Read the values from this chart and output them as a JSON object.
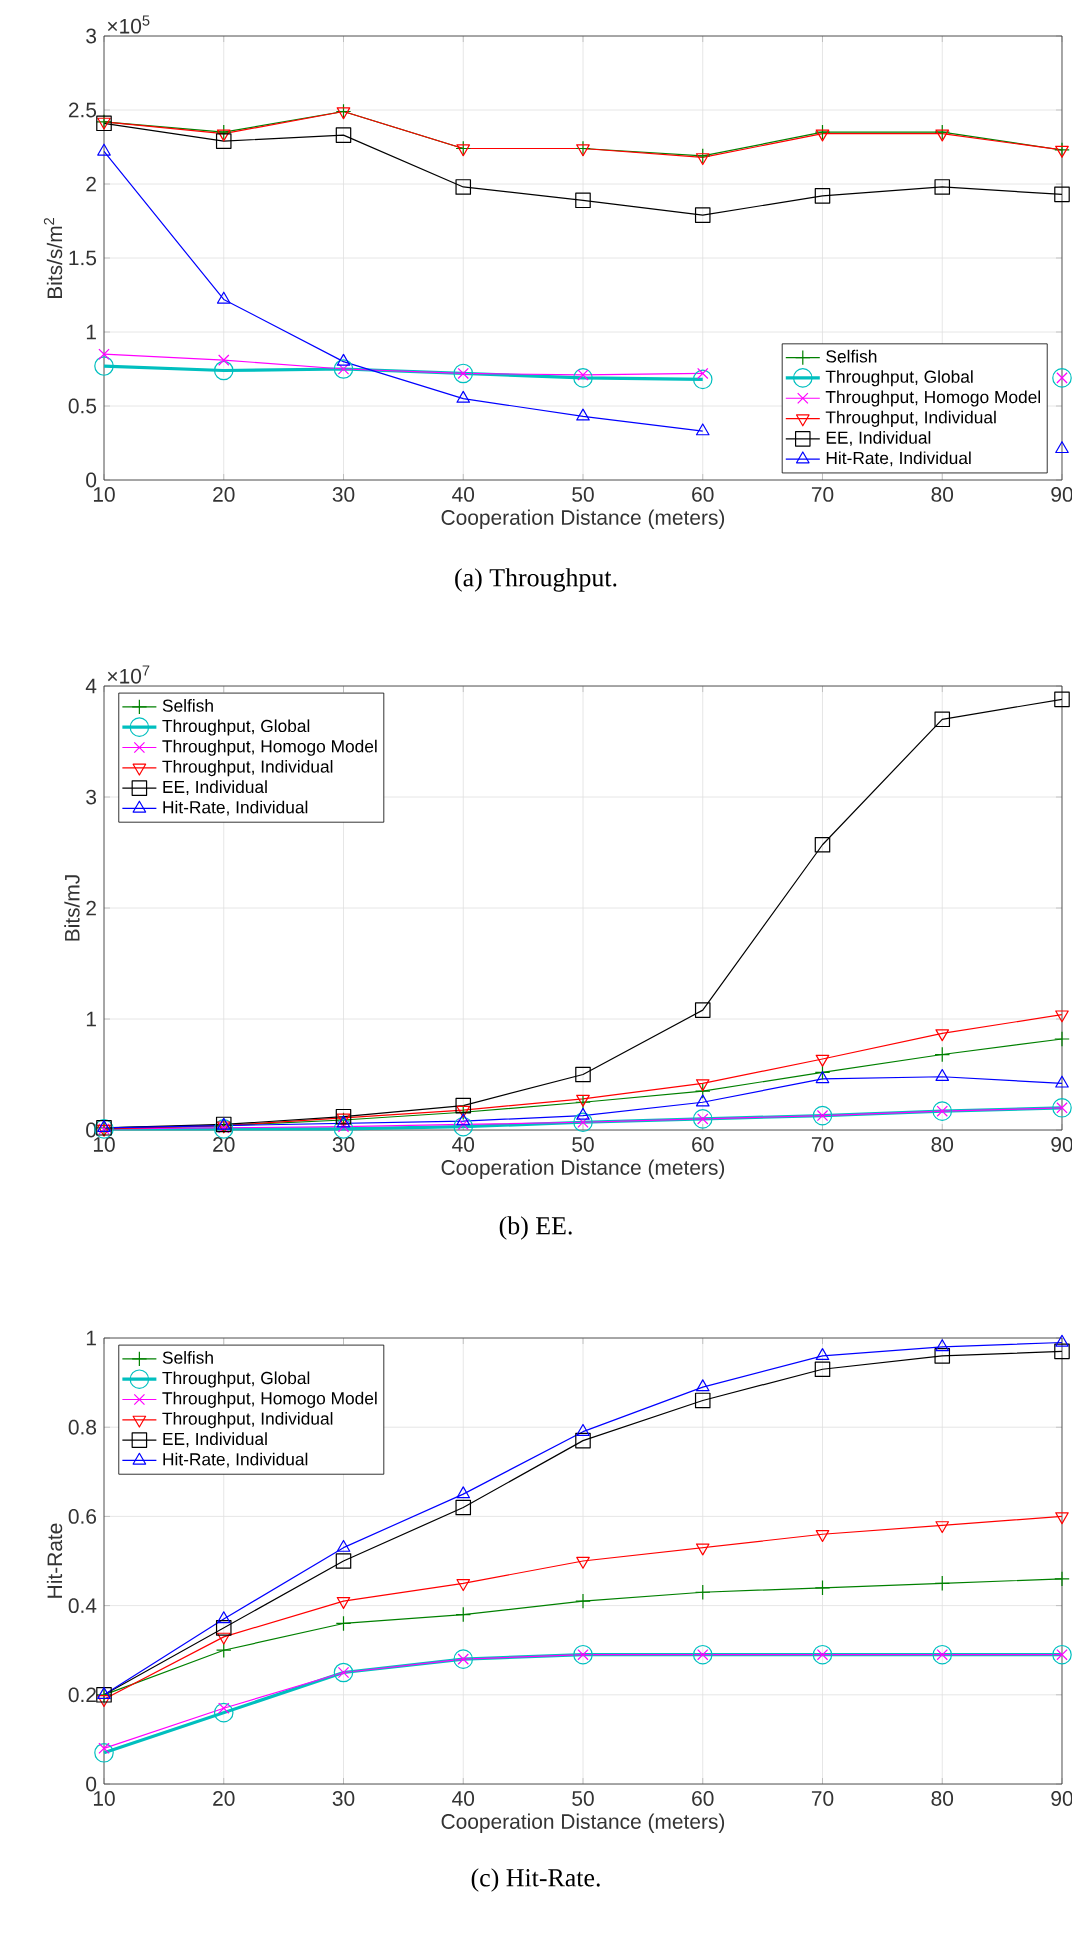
{
  "chart_data": [
    {
      "type": "line",
      "subtitle": "(a) Throughput.",
      "annotations": [
        "×10$^{5}$"
      ],
      "xlabel": "Cooperation Distance (meters)",
      "ylabel": "Bits/s/m$^{2}$",
      "x": [
        10,
        20,
        30,
        40,
        50,
        60,
        70,
        80,
        90
      ],
      "xlim": [
        10,
        90
      ],
      "xticks": [
        10,
        20,
        30,
        40,
        50,
        60,
        70,
        80,
        90
      ],
      "ylim": [
        0,
        3
      ],
      "yticks": [
        0,
        0.5,
        1,
        1.5,
        2,
        2.5,
        3
      ],
      "grid": true,
      "legend": "bottom right",
      "series": [
        {
          "name": "Selfish",
          "color": "#008000",
          "marker": "plus",
          "values": [
            2.42,
            2.35,
            2.49,
            2.24,
            2.24,
            2.19,
            2.35,
            2.35,
            2.23
          ]
        },
        {
          "name": "Throughput, Global",
          "color": "#00bfbf",
          "marker": "circle",
          "values": [
            0.77,
            0.74,
            0.75,
            0.72,
            0.69,
            0.68,
            null,
            null,
            0.69
          ]
        },
        {
          "name": "Throughput, Homogo Model",
          "color": "#ff00ff",
          "marker": "cross",
          "values": [
            0.85,
            0.81,
            0.75,
            0.72,
            0.71,
            0.72,
            null,
            null,
            0.69
          ]
        },
        {
          "name": "Throughput, Individual",
          "color": "#ff0000",
          "marker": "triangle-down",
          "values": [
            2.42,
            2.34,
            2.49,
            2.24,
            2.24,
            2.18,
            2.34,
            2.34,
            2.23
          ]
        },
        {
          "name": "EE, Individual",
          "color": "#000000",
          "marker": "square",
          "values": [
            2.41,
            2.29,
            2.33,
            1.98,
            1.89,
            1.79,
            1.92,
            1.98,
            1.93
          ]
        },
        {
          "name": "Hit-Rate, Individual",
          "color": "#0000ff",
          "marker": "triangle",
          "values": [
            2.22,
            1.22,
            0.8,
            0.55,
            0.43,
            0.33,
            null,
            null,
            0.21
          ]
        }
      ]
    },
    {
      "type": "line",
      "subtitle": "(b) EE.",
      "annotations": [
        "×10$^{7}$"
      ],
      "xlabel": "Cooperation Distance (meters)",
      "ylabel": "Bits/mJ",
      "x": [
        10,
        20,
        30,
        40,
        50,
        60,
        70,
        80,
        90
      ],
      "xlim": [
        10,
        90
      ],
      "xticks": [
        10,
        20,
        30,
        40,
        50,
        60,
        70,
        80,
        90
      ],
      "ylim": [
        0,
        4
      ],
      "yticks": [
        0,
        1,
        2,
        3,
        4
      ],
      "grid": true,
      "legend": "top left",
      "series": [
        {
          "name": "Selfish",
          "color": "#008000",
          "marker": "plus",
          "values": [
            0.02,
            0.04,
            0.09,
            0.16,
            0.25,
            0.35,
            0.52,
            0.68,
            0.82
          ]
        },
        {
          "name": "Throughput, Global",
          "color": "#00bfbf",
          "marker": "circle",
          "values": [
            0.01,
            0.01,
            0.01,
            0.03,
            0.07,
            0.1,
            0.13,
            0.17,
            0.2
          ]
        },
        {
          "name": "Throughput, Homogo Model",
          "color": "#ff00ff",
          "marker": "cross",
          "values": [
            0.01,
            0.02,
            0.03,
            0.05,
            0.07,
            0.1,
            0.13,
            0.17,
            0.2
          ]
        },
        {
          "name": "Throughput, Individual",
          "color": "#ff0000",
          "marker": "triangle-down",
          "values": [
            0.01,
            0.04,
            0.11,
            0.18,
            0.28,
            0.42,
            0.64,
            0.87,
            1.04
          ]
        },
        {
          "name": "EE, Individual",
          "color": "#000000",
          "marker": "square",
          "values": [
            0.02,
            0.05,
            0.12,
            0.22,
            0.5,
            1.08,
            2.57,
            3.7,
            3.88
          ]
        },
        {
          "name": "Hit-Rate, Individual",
          "color": "#0000ff",
          "marker": "triangle",
          "values": [
            0.02,
            0.04,
            0.06,
            0.08,
            0.13,
            0.25,
            0.46,
            0.48,
            0.42
          ]
        }
      ]
    },
    {
      "type": "line",
      "subtitle": "(c) Hit-Rate.",
      "xlabel": "Cooperation Distance (meters)",
      "ylabel": "Hit-Rate",
      "x": [
        10,
        20,
        30,
        40,
        50,
        60,
        70,
        80,
        90
      ],
      "xlim": [
        10,
        90
      ],
      "xticks": [
        10,
        20,
        30,
        40,
        50,
        60,
        70,
        80,
        90
      ],
      "ylim": [
        0,
        1
      ],
      "yticks": [
        0,
        0.2,
        0.4,
        0.6,
        0.8,
        1
      ],
      "grid": true,
      "legend": "top left",
      "series": [
        {
          "name": "Selfish",
          "color": "#008000",
          "marker": "plus",
          "values": [
            0.2,
            0.3,
            0.36,
            0.38,
            0.41,
            0.43,
            0.44,
            0.45,
            0.46
          ]
        },
        {
          "name": "Throughput, Global",
          "color": "#00bfbf",
          "marker": "circle",
          "values": [
            0.07,
            0.16,
            0.25,
            0.28,
            0.29,
            0.29,
            0.29,
            0.29,
            0.29
          ]
        },
        {
          "name": "Throughput, Homogo Model",
          "color": "#ff00ff",
          "marker": "cross",
          "values": [
            0.08,
            0.17,
            0.25,
            0.28,
            0.29,
            0.29,
            0.29,
            0.29,
            0.29
          ]
        },
        {
          "name": "Throughput, Individual",
          "color": "#ff0000",
          "marker": "triangle-down",
          "values": [
            0.19,
            0.33,
            0.41,
            0.45,
            0.5,
            0.53,
            0.56,
            0.58,
            0.6
          ]
        },
        {
          "name": "EE, Individual",
          "color": "#000000",
          "marker": "square",
          "values": [
            0.2,
            0.35,
            0.5,
            0.62,
            0.77,
            0.86,
            0.93,
            0.96,
            0.97
          ]
        },
        {
          "name": "Hit-Rate, Individual",
          "color": "#0000ff",
          "marker": "triangle",
          "values": [
            0.2,
            0.37,
            0.53,
            0.65,
            0.79,
            0.89,
            0.96,
            0.98,
            0.99
          ]
        }
      ]
    }
  ]
}
